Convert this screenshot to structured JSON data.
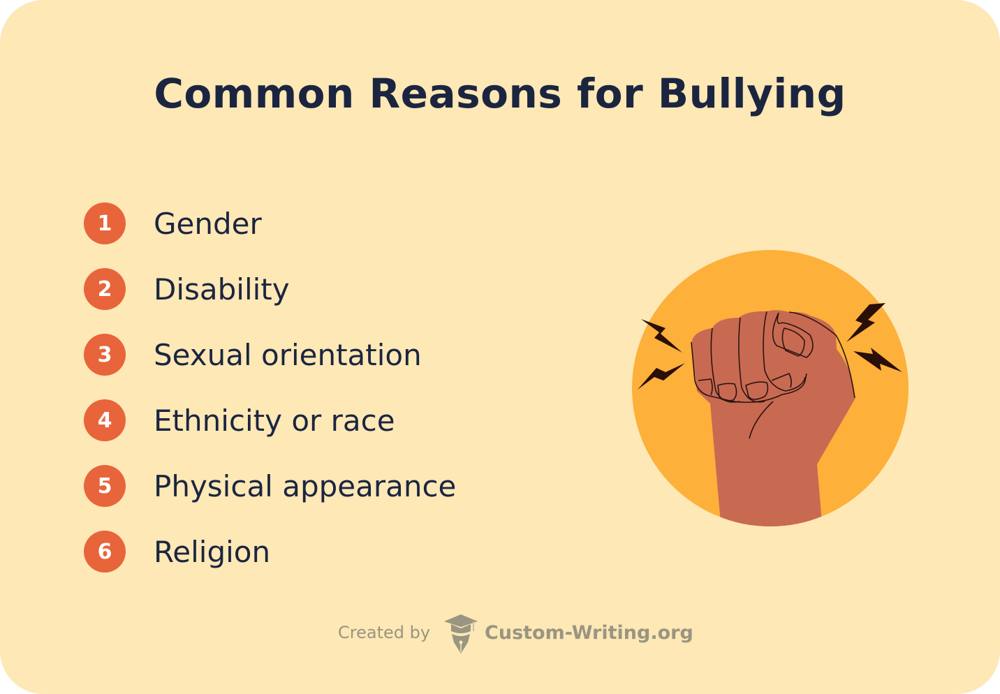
{
  "title": "Common Reasons for Bullying",
  "reasons": [
    {
      "number": "1",
      "label": "Gender"
    },
    {
      "number": "2",
      "label": "Disability"
    },
    {
      "number": "3",
      "label": "Sexual orientation"
    },
    {
      "number": "4",
      "label": "Ethnicity or race"
    },
    {
      "number": "5",
      "label": "Physical appearance"
    },
    {
      "number": "6",
      "label": "Religion"
    }
  ],
  "illustration": {
    "icon": "raised-fist-icon",
    "circle_color": "#fdb03a",
    "skin_color": "#c86a52"
  },
  "footer": {
    "created_by": "Created by",
    "brand": "Custom-Writing.org"
  },
  "colors": {
    "background": "#fde8b6",
    "accent": "#e8643a",
    "text": "#1b2540"
  }
}
